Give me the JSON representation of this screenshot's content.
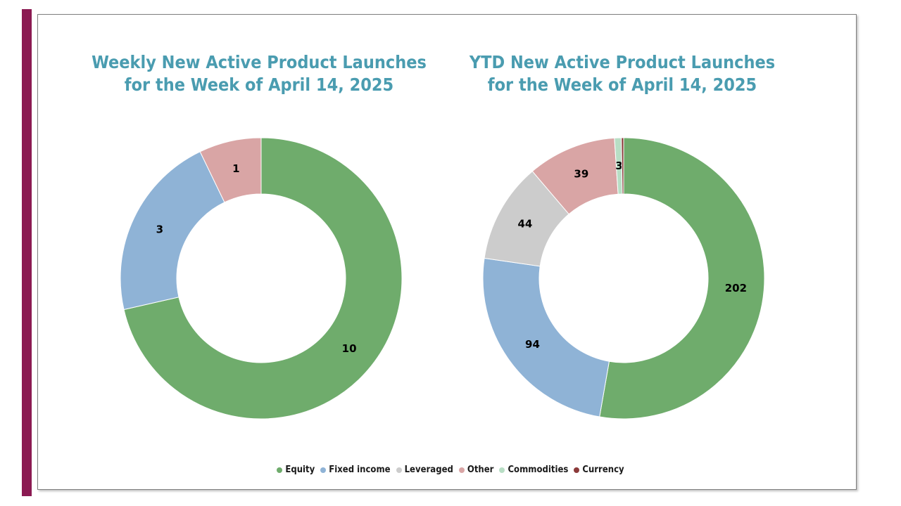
{
  "colors": {
    "accent_bar": "#8b1a52",
    "title": "#4a9cb0",
    "slice_border": "#ffffff"
  },
  "legend": [
    {
      "name": "Equity",
      "color": "#6fac6c"
    },
    {
      "name": "Fixed income",
      "color": "#8fb3d6"
    },
    {
      "name": "Leveraged",
      "color": "#cccccc"
    },
    {
      "name": "Other",
      "color": "#d9a5a5"
    },
    {
      "name": "Commodities",
      "color": "#b8dec5"
    },
    {
      "name": "Currency",
      "color": "#8b3a3a"
    }
  ],
  "chart_data": [
    {
      "type": "pie",
      "variant": "donut",
      "title_lines": [
        "Weekly New Active Product Launches",
        "for the Week of April 14, 2025"
      ],
      "slices": [
        {
          "name": "Equity",
          "value": 10,
          "label": "10"
        },
        {
          "name": "Fixed income",
          "value": 3,
          "label": "3"
        },
        {
          "name": "Other",
          "value": 1,
          "label": "1"
        }
      ],
      "legend": "bottom"
    },
    {
      "type": "pie",
      "variant": "donut",
      "title_lines": [
        "YTD New Active Product Launches",
        "for the Week of April 14, 2025"
      ],
      "slices": [
        {
          "name": "Equity",
          "value": 202,
          "label": "202"
        },
        {
          "name": "Fixed income",
          "value": 94,
          "label": "94"
        },
        {
          "name": "Leveraged",
          "value": 44,
          "label": "44"
        },
        {
          "name": "Other",
          "value": 39,
          "label": "39"
        },
        {
          "name": "Commodities",
          "value": 3,
          "label": "3"
        },
        {
          "name": "Currency",
          "value": 1,
          "label": ""
        }
      ],
      "legend": "bottom"
    }
  ]
}
